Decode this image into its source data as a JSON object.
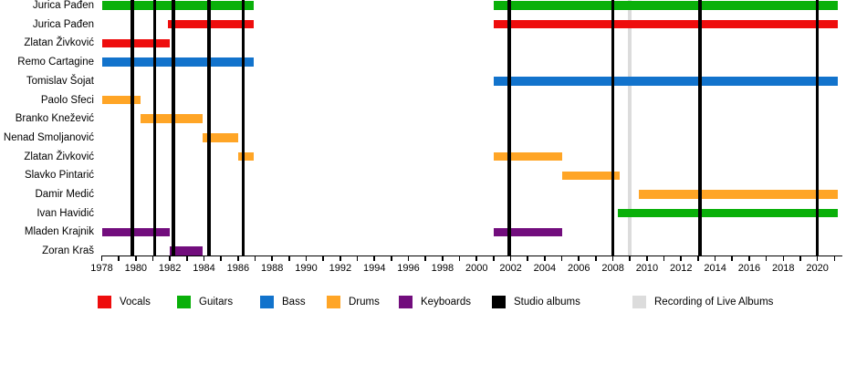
{
  "chart_data": {
    "type": "timeline_gantt",
    "description": "Band line-up timeline: members, instruments and tenure periods",
    "x_axis": {
      "min": 1978,
      "max": 2021.4,
      "tick_interval_years": 1,
      "label_interval_years": 2,
      "first_label": 1978,
      "last_label": 2020
    },
    "rows": [
      {
        "name": "Jurica Pađen",
        "role": "Guitars",
        "periods": [
          [
            1978,
            1986.9
          ],
          [
            2001,
            2021.2
          ]
        ]
      },
      {
        "name": "Jurica Pađen",
        "role": "Vocals",
        "periods": [
          [
            1981.9,
            1986.9
          ],
          [
            2001,
            2021.2
          ]
        ]
      },
      {
        "name": "Zlatan Živković",
        "role": "Vocals",
        "periods": [
          [
            1978,
            1982
          ]
        ]
      },
      {
        "name": "Remo Cartagine",
        "role": "Bass",
        "periods": [
          [
            1978,
            1986.9
          ]
        ]
      },
      {
        "name": "Tomislav Šojat",
        "role": "Bass",
        "periods": [
          [
            2001,
            2021.2
          ]
        ]
      },
      {
        "name": "Paolo Sfeci",
        "role": "Drums",
        "periods": [
          [
            1978,
            1980.3
          ]
        ]
      },
      {
        "name": "Branko Knežević",
        "role": "Drums",
        "periods": [
          [
            1980.3,
            1983.9
          ]
        ]
      },
      {
        "name": "Nenad Smoljanović",
        "role": "Drums",
        "periods": [
          [
            1983.9,
            1986
          ]
        ]
      },
      {
        "name": "Zlatan Živković",
        "role": "Drums",
        "periods": [
          [
            1986,
            1986.9
          ],
          [
            2001,
            2005
          ]
        ]
      },
      {
        "name": "Slavko Pintarić",
        "role": "Drums",
        "periods": [
          [
            2005,
            2008.4
          ]
        ]
      },
      {
        "name": "Damir Medić",
        "role": "Drums",
        "periods": [
          [
            2009.5,
            2021.2
          ]
        ]
      },
      {
        "name": "Ivan Havidić",
        "role": "Guitars",
        "periods": [
          [
            2008.3,
            2021.2
          ]
        ]
      },
      {
        "name": "Mladen Krajnik",
        "role": "Keyboards",
        "periods": [
          [
            1978,
            1982
          ],
          [
            2001,
            2005
          ]
        ]
      },
      {
        "name": "Zoran Kraš",
        "role": "Keyboards",
        "periods": [
          [
            1982,
            1983.9
          ]
        ]
      }
    ],
    "events": {
      "studio_albums": [
        1979.8,
        1981.1,
        1982.2,
        1984.3,
        1986.3,
        2001.9,
        2008.0,
        2013.1,
        2020.0
      ],
      "live_album_recordings": [
        2009.0
      ]
    },
    "colors": {
      "Vocals": "#ee0d0d",
      "Guitars": "#0ab00a",
      "Bass": "#1273cc",
      "Drums": "#ffa526",
      "Keyboards": "#720d7d",
      "Studio albums": "#000000",
      "Recording of Live Albums": "#dcdcdc"
    },
    "legend": [
      {
        "label": "Vocals",
        "color_key": "Vocals"
      },
      {
        "label": "Guitars",
        "color_key": "Guitars"
      },
      {
        "label": "Bass",
        "color_key": "Bass"
      },
      {
        "label": "Drums",
        "color_key": "Drums"
      },
      {
        "label": "Keyboards",
        "color_key": "Keyboards"
      },
      {
        "label": "Studio albums",
        "color_key": "Studio albums"
      },
      {
        "label": "Recording of Live Albums",
        "color_key": "Recording of Live Albums"
      }
    ]
  }
}
